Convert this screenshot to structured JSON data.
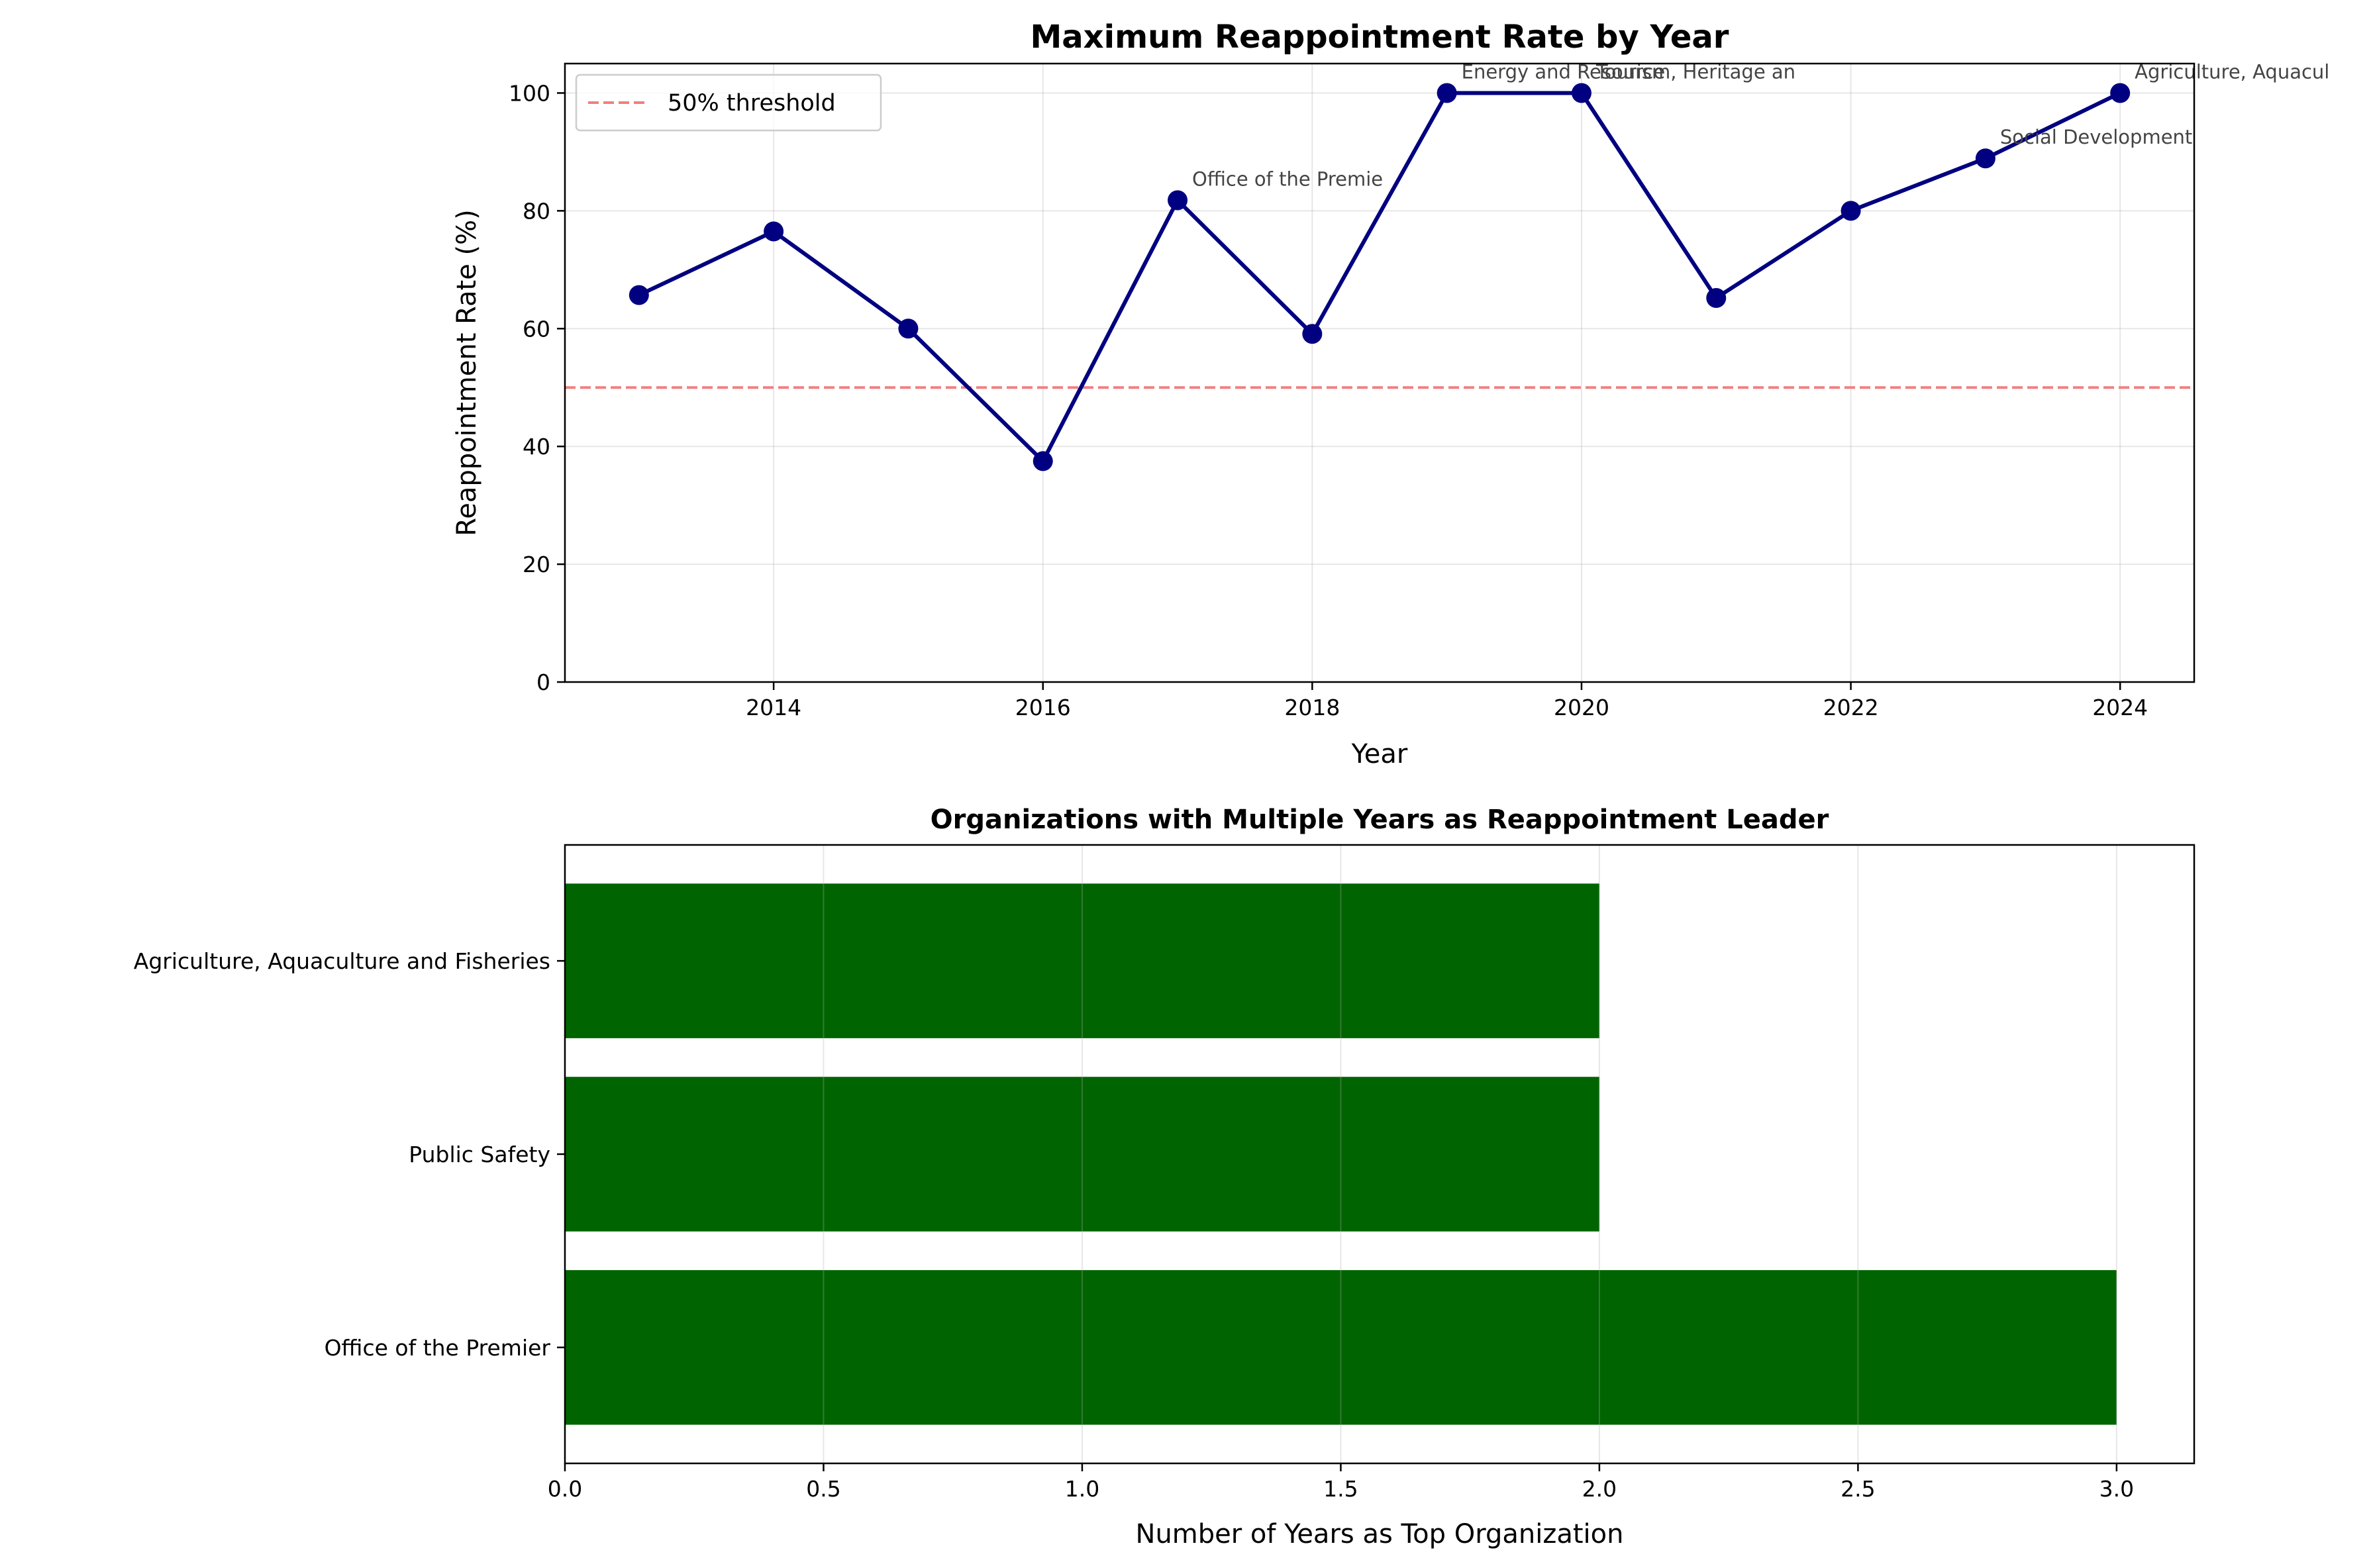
{
  "chart_data": [
    {
      "type": "line",
      "title": "Maximum Reappointment Rate by Year",
      "xlabel": "Year",
      "ylabel": "Reappointment Rate (%)",
      "xlim": [
        2012.45,
        2024.55
      ],
      "ylim": [
        0,
        105
      ],
      "xticks": [
        2014,
        2016,
        2018,
        2020,
        2022,
        2024
      ],
      "yticks": [
        0,
        20,
        40,
        60,
        80,
        100
      ],
      "grid": true,
      "legend": {
        "placement": "upper-left",
        "entries": [
          "50% threshold"
        ]
      },
      "threshold": {
        "name": "50% threshold",
        "value": 50,
        "color": "#f08080",
        "style": "dashed"
      },
      "line_color": "#000080",
      "series": [
        {
          "x": [
            2013,
            2014,
            2015,
            2016,
            2017,
            2018,
            2019,
            2020,
            2021,
            2022,
            2023,
            2024
          ],
          "y": [
            65.7,
            76.5,
            60.0,
            37.5,
            81.8,
            59.1,
            100.0,
            100.0,
            65.2,
            80.0,
            88.9,
            100.0
          ]
        }
      ],
      "annotations": [
        {
          "x": 2017,
          "y": 81.8,
          "text": "Office of the Premie"
        },
        {
          "x": 2019,
          "y": 100,
          "text": "Energy and Resource"
        },
        {
          "x": 2020,
          "y": 100,
          "text": "Tourism, Heritage an"
        },
        {
          "x": 2023,
          "y": 88.9,
          "text": "Social Development"
        },
        {
          "x": 2024,
          "y": 100,
          "text": "Agriculture, Aquacul"
        }
      ]
    },
    {
      "type": "bar",
      "orientation": "horizontal",
      "title": "Organizations with Multiple Years as Reappointment Leader",
      "xlabel": "Number of Years as Top Organization",
      "xlim": [
        0,
        3.15
      ],
      "xticks": [
        0.0,
        0.5,
        1.0,
        1.5,
        2.0,
        2.5,
        3.0
      ],
      "xtick_labels": [
        "0.0",
        "0.5",
        "1.0",
        "1.5",
        "2.0",
        "2.5",
        "3.0"
      ],
      "grid": true,
      "bar_color": "#006400",
      "categories": [
        "Agriculture, Aquaculture and Fisheries",
        "Public Safety",
        "Office of the Premier"
      ],
      "values": [
        2,
        2,
        3
      ]
    }
  ]
}
